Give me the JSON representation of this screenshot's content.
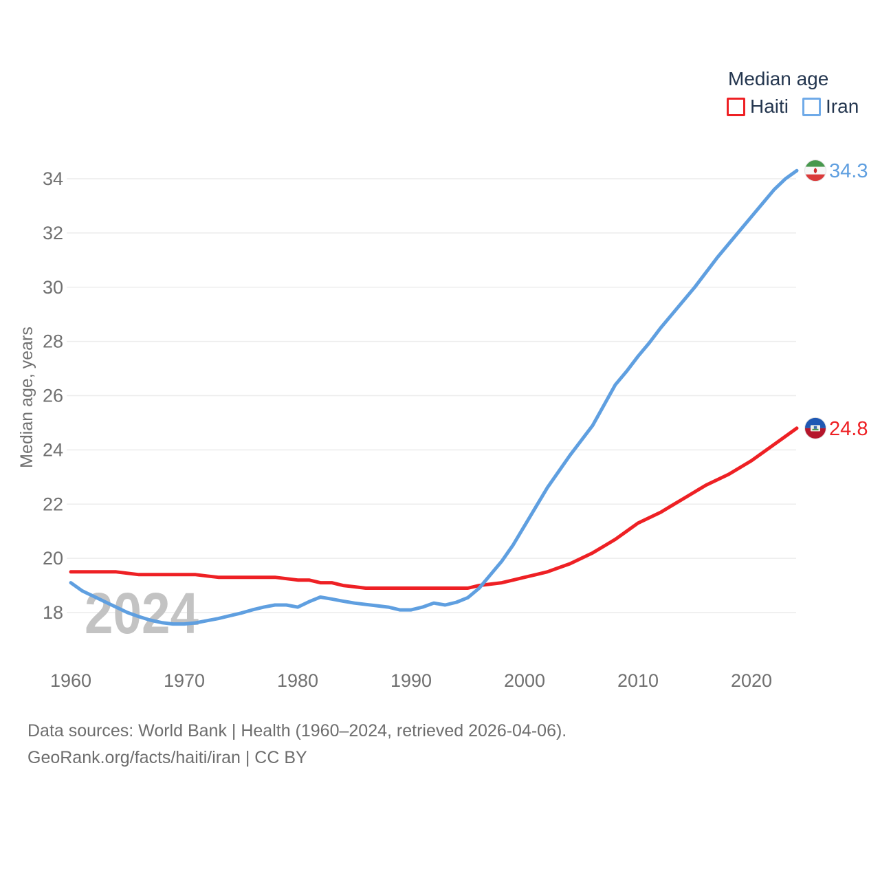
{
  "legend": {
    "title": "Median age",
    "items": [
      {
        "label": "Haiti",
        "color": "#ee2024"
      },
      {
        "label": "Iran",
        "color": "#6faae8"
      }
    ]
  },
  "chart_data": {
    "type": "line",
    "title": "Median age",
    "xlabel": "",
    "ylabel": "Median age, years",
    "watermark": "2024",
    "grid": "horizontal",
    "legend_position": "top-right",
    "xlim": [
      1960,
      2024
    ],
    "ylim": [
      17.4,
      34.6
    ],
    "x_ticks": [
      1960,
      1970,
      1980,
      1990,
      2000,
      2010,
      2020
    ],
    "y_ticks": [
      18,
      20,
      22,
      24,
      26,
      28,
      30,
      32,
      34
    ],
    "years": [
      1960,
      1961,
      1962,
      1963,
      1964,
      1965,
      1966,
      1967,
      1968,
      1969,
      1970,
      1971,
      1972,
      1973,
      1974,
      1975,
      1976,
      1977,
      1978,
      1979,
      1980,
      1981,
      1982,
      1983,
      1984,
      1985,
      1986,
      1987,
      1988,
      1989,
      1990,
      1991,
      1992,
      1993,
      1994,
      1995,
      1996,
      1997,
      1998,
      1999,
      2000,
      2001,
      2002,
      2003,
      2004,
      2005,
      2006,
      2007,
      2008,
      2009,
      2010,
      2011,
      2012,
      2013,
      2014,
      2015,
      2016,
      2017,
      2018,
      2019,
      2020,
      2021,
      2022,
      2023,
      2024
    ],
    "series": [
      {
        "name": "Haiti",
        "color": "#ee2024",
        "flag": "haiti",
        "end_label": "24.8",
        "end_value": 24.8,
        "values": [
          19.5,
          19.5,
          19.5,
          19.5,
          19.5,
          19.45,
          19.4,
          19.4,
          19.4,
          19.4,
          19.4,
          19.4,
          19.35,
          19.3,
          19.3,
          19.3,
          19.3,
          19.3,
          19.3,
          19.25,
          19.2,
          19.2,
          19.1,
          19.1,
          19.0,
          18.95,
          18.9,
          18.9,
          18.9,
          18.9,
          18.9,
          18.9,
          18.9,
          18.9,
          18.9,
          18.9,
          19.0,
          19.05,
          19.1,
          19.2,
          19.3,
          19.4,
          19.5,
          19.65,
          19.8,
          20.0,
          20.2,
          20.45,
          20.7,
          21.0,
          21.3,
          21.5,
          21.7,
          21.95,
          22.2,
          22.45,
          22.7,
          22.9,
          23.1,
          23.35,
          23.6,
          23.9,
          24.2,
          24.5,
          24.8
        ]
      },
      {
        "name": "Iran",
        "color": "#5f9fe0",
        "flag": "iran",
        "end_label": "34.3",
        "end_value": 34.3,
        "values": [
          19.1,
          18.8,
          18.6,
          18.4,
          18.2,
          18.0,
          17.85,
          17.72,
          17.63,
          17.58,
          17.58,
          17.62,
          17.7,
          17.78,
          17.88,
          17.98,
          18.1,
          18.2,
          18.28,
          18.28,
          18.2,
          18.4,
          18.57,
          18.5,
          18.42,
          18.35,
          18.3,
          18.25,
          18.2,
          18.1,
          18.1,
          18.2,
          18.35,
          18.28,
          18.38,
          18.55,
          18.9,
          19.4,
          19.9,
          20.5,
          21.2,
          21.9,
          22.6,
          23.2,
          23.8,
          24.35,
          24.9,
          25.65,
          26.4,
          26.9,
          27.45,
          27.95,
          28.5,
          29.0,
          29.5,
          30.0,
          30.55,
          31.1,
          31.6,
          32.1,
          32.6,
          33.1,
          33.6,
          34.0,
          34.3
        ]
      }
    ]
  },
  "footer": {
    "line1": "Data sources: World Bank | Health (1960–2024, retrieved 2026-04-06).",
    "line2": "GeoRank.org/facts/haiti/iran | CC BY"
  }
}
